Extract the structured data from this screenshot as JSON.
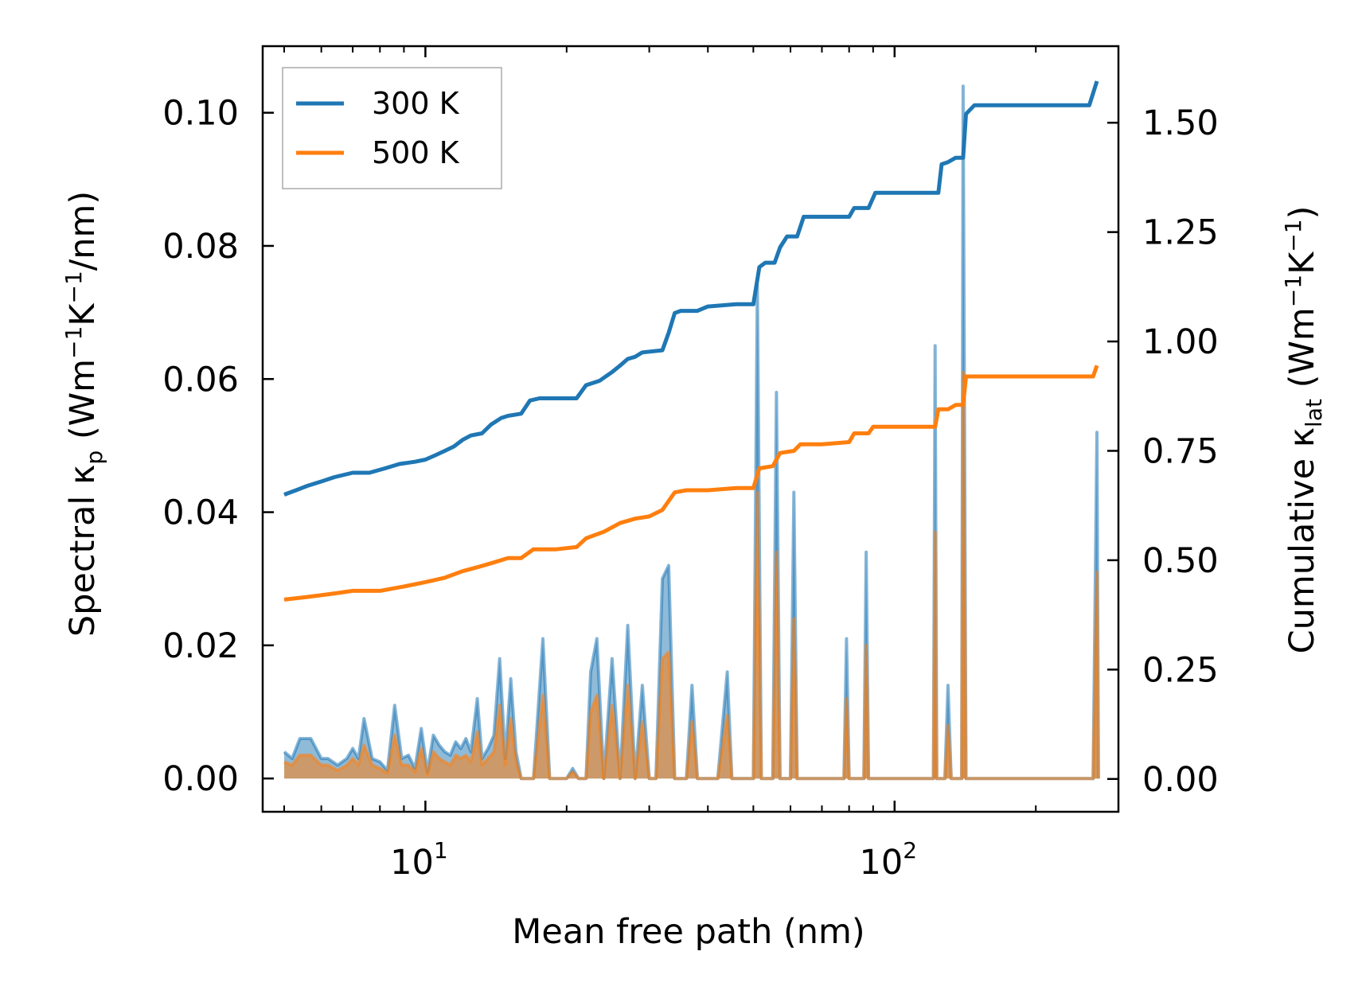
{
  "chart_data": {
    "type": "line",
    "xscale": "log",
    "xlabel": "Mean free path (nm)",
    "ylabel_left": {
      "main": "Spectral κ",
      "sub": "p",
      "unit_open": " (Wm",
      "exp1": "−1",
      "mid": "K",
      "exp2": "−1",
      "unit_close": "/nm)"
    },
    "ylabel_right": {
      "main": "Cumulative κ",
      "sub": "lat",
      "unit_open": " (Wm",
      "exp1": "−1",
      "mid": "K",
      "exp2": "−1",
      "unit_close": ")"
    },
    "xlim": [
      4.5,
      300
    ],
    "ylim_left": [
      -0.005,
      0.11
    ],
    "ylim_right": [
      -0.075,
      1.675
    ],
    "x_ticks": [
      {
        "value": 10,
        "base": "10",
        "exp": "1"
      },
      {
        "value": 100,
        "base": "10",
        "exp": "2"
      }
    ],
    "y_ticks_left": [
      {
        "value": 0.0,
        "label": "0.00"
      },
      {
        "value": 0.02,
        "label": "0.02"
      },
      {
        "value": 0.04,
        "label": "0.04"
      },
      {
        "value": 0.06,
        "label": "0.06"
      },
      {
        "value": 0.08,
        "label": "0.08"
      },
      {
        "value": 0.1,
        "label": "0.10"
      }
    ],
    "y_ticks_right": [
      {
        "value": 0.0,
        "label": "0.00"
      },
      {
        "value": 0.25,
        "label": "0.25"
      },
      {
        "value": 0.5,
        "label": "0.50"
      },
      {
        "value": 0.75,
        "label": "0.75"
      },
      {
        "value": 1.0,
        "label": "1.00"
      },
      {
        "value": 1.25,
        "label": "1.25"
      },
      {
        "value": 1.5,
        "label": "1.50"
      }
    ],
    "legend": {
      "position": "top-left",
      "entries": [
        {
          "label": "300 K",
          "color": "#1f77b4"
        },
        {
          "label": "500 K",
          "color": "#ff7f0e"
        }
      ]
    },
    "series": [
      {
        "name": "300 K",
        "color": "#1f77b4",
        "cumulative": [
          [
            5.0,
            0.65
          ],
          [
            5.3,
            0.66
          ],
          [
            5.6,
            0.67
          ],
          [
            6.0,
            0.68
          ],
          [
            6.4,
            0.69
          ],
          [
            7.0,
            0.7
          ],
          [
            7.6,
            0.7
          ],
          [
            8.2,
            0.71
          ],
          [
            8.8,
            0.72
          ],
          [
            9.5,
            0.725
          ],
          [
            10.0,
            0.73
          ],
          [
            10.5,
            0.74
          ],
          [
            11.0,
            0.75
          ],
          [
            11.5,
            0.76
          ],
          [
            12.0,
            0.775
          ],
          [
            12.5,
            0.785
          ],
          [
            13.2,
            0.79
          ],
          [
            13.8,
            0.81
          ],
          [
            14.5,
            0.825
          ],
          [
            15.0,
            0.83
          ],
          [
            16.0,
            0.835
          ],
          [
            16.7,
            0.865
          ],
          [
            17.5,
            0.87
          ],
          [
            19.0,
            0.87
          ],
          [
            21.0,
            0.87
          ],
          [
            22.0,
            0.9
          ],
          [
            23.5,
            0.91
          ],
          [
            25.0,
            0.93
          ],
          [
            26.0,
            0.945
          ],
          [
            27.0,
            0.96
          ],
          [
            28.0,
            0.965
          ],
          [
            29.0,
            0.975
          ],
          [
            32.0,
            0.98
          ],
          [
            33.0,
            1.02
          ],
          [
            34.0,
            1.065
          ],
          [
            35.0,
            1.07
          ],
          [
            38.0,
            1.07
          ],
          [
            40.0,
            1.08
          ],
          [
            46.0,
            1.085
          ],
          [
            50.0,
            1.085
          ],
          [
            51.5,
            1.17
          ],
          [
            53.0,
            1.18
          ],
          [
            55.5,
            1.18
          ],
          [
            57.0,
            1.215
          ],
          [
            59.0,
            1.24
          ],
          [
            62.0,
            1.24
          ],
          [
            64.0,
            1.285
          ],
          [
            70.0,
            1.285
          ],
          [
            80.0,
            1.285
          ],
          [
            82.0,
            1.305
          ],
          [
            88.0,
            1.305
          ],
          [
            91.0,
            1.34
          ],
          [
            100.0,
            1.34
          ],
          [
            124.0,
            1.34
          ],
          [
            126.0,
            1.405
          ],
          [
            130.0,
            1.41
          ],
          [
            135.0,
            1.42
          ],
          [
            140.0,
            1.42
          ],
          [
            142.0,
            1.52
          ],
          [
            148.0,
            1.54
          ],
          [
            200.0,
            1.54
          ],
          [
            260.0,
            1.54
          ],
          [
            270.0,
            1.595
          ]
        ],
        "spectral": [
          [
            5.0,
            0.004
          ],
          [
            5.2,
            0.003
          ],
          [
            5.4,
            0.006
          ],
          [
            5.7,
            0.006
          ],
          [
            6.0,
            0.003
          ],
          [
            6.2,
            0.003
          ],
          [
            6.5,
            0.002
          ],
          [
            6.8,
            0.003
          ],
          [
            7.0,
            0.0045
          ],
          [
            7.2,
            0.003
          ],
          [
            7.4,
            0.009
          ],
          [
            7.7,
            0.003
          ],
          [
            8.0,
            0.0025
          ],
          [
            8.3,
            0.0012
          ],
          [
            8.6,
            0.011
          ],
          [
            8.9,
            0.003
          ],
          [
            9.2,
            0.0035
          ],
          [
            9.5,
            0.0015
          ],
          [
            9.8,
            0.0075
          ],
          [
            10.1,
            0.001
          ],
          [
            10.4,
            0.0065
          ],
          [
            10.7,
            0.005
          ],
          [
            11.0,
            0.004
          ],
          [
            11.3,
            0.0035
          ],
          [
            11.6,
            0.0055
          ],
          [
            11.9,
            0.0045
          ],
          [
            12.2,
            0.006
          ],
          [
            12.5,
            0.004
          ],
          [
            12.9,
            0.012
          ],
          [
            13.2,
            0.003
          ],
          [
            13.6,
            0.0045
          ],
          [
            14.0,
            0.0065
          ],
          [
            14.4,
            0.018
          ],
          [
            14.8,
            0.003
          ],
          [
            15.2,
            0.015
          ],
          [
            15.6,
            0.004
          ],
          [
            16.0,
            0.0
          ],
          [
            17.0,
            0.0
          ],
          [
            17.8,
            0.021
          ],
          [
            18.4,
            0.0
          ],
          [
            20.0,
            0.0
          ],
          [
            20.6,
            0.0015
          ],
          [
            21.2,
            0.0
          ],
          [
            22.0,
            0.0
          ],
          [
            22.5,
            0.016
          ],
          [
            23.2,
            0.021
          ],
          [
            24.0,
            0.0
          ],
          [
            25.0,
            0.018
          ],
          [
            26.0,
            0.0
          ],
          [
            27.0,
            0.023
          ],
          [
            28.0,
            0.0
          ],
          [
            29.0,
            0.014
          ],
          [
            30.0,
            0.0
          ],
          [
            31.0,
            0.0
          ],
          [
            32.0,
            0.03
          ],
          [
            33.0,
            0.032
          ],
          [
            34.0,
            0.0
          ],
          [
            36.0,
            0.0
          ],
          [
            37.0,
            0.014
          ],
          [
            38.0,
            0.0
          ],
          [
            42.0,
            0.0
          ],
          [
            44.0,
            0.016
          ],
          [
            45.0,
            0.0
          ],
          [
            50.0,
            0.0
          ],
          [
            51.0,
            0.074
          ],
          [
            52.0,
            0.0
          ],
          [
            55.0,
            0.0
          ],
          [
            56.0,
            0.058
          ],
          [
            57.0,
            0.0
          ],
          [
            60.0,
            0.0
          ],
          [
            61.0,
            0.043
          ],
          [
            62.0,
            0.0
          ],
          [
            78.0,
            0.0
          ],
          [
            79.0,
            0.021
          ],
          [
            80.0,
            0.0
          ],
          [
            86.0,
            0.0
          ],
          [
            87.0,
            0.034
          ],
          [
            88.0,
            0.0
          ],
          [
            121.0,
            0.0
          ],
          [
            122.0,
            0.065
          ],
          [
            123.0,
            0.0
          ],
          [
            128.0,
            0.0
          ],
          [
            130.0,
            0.014
          ],
          [
            132.0,
            0.0
          ],
          [
            139.0,
            0.0
          ],
          [
            140.0,
            0.104
          ],
          [
            142.0,
            0.0
          ],
          [
            265.0,
            0.0
          ],
          [
            270.0,
            0.052
          ],
          [
            272.0,
            0.0
          ]
        ]
      },
      {
        "name": "500 K",
        "color": "#ff7f0e",
        "cumulative": [
          [
            5.0,
            0.41
          ],
          [
            5.5,
            0.415
          ],
          [
            6.0,
            0.42
          ],
          [
            6.5,
            0.425
          ],
          [
            7.0,
            0.43
          ],
          [
            8.0,
            0.43
          ],
          [
            9.0,
            0.44
          ],
          [
            10.0,
            0.45
          ],
          [
            11.0,
            0.46
          ],
          [
            12.0,
            0.475
          ],
          [
            13.0,
            0.485
          ],
          [
            14.0,
            0.495
          ],
          [
            15.0,
            0.505
          ],
          [
            16.0,
            0.505
          ],
          [
            17.0,
            0.525
          ],
          [
            19.0,
            0.525
          ],
          [
            21.0,
            0.53
          ],
          [
            22.0,
            0.55
          ],
          [
            24.0,
            0.565
          ],
          [
            26.0,
            0.585
          ],
          [
            28.0,
            0.595
          ],
          [
            30.0,
            0.6
          ],
          [
            32.0,
            0.615
          ],
          [
            34.0,
            0.655
          ],
          [
            36.0,
            0.66
          ],
          [
            40.0,
            0.66
          ],
          [
            46.0,
            0.665
          ],
          [
            50.0,
            0.665
          ],
          [
            51.5,
            0.71
          ],
          [
            55.0,
            0.715
          ],
          [
            57.0,
            0.745
          ],
          [
            61.0,
            0.75
          ],
          [
            63.0,
            0.765
          ],
          [
            70.0,
            0.765
          ],
          [
            80.0,
            0.77
          ],
          [
            82.0,
            0.79
          ],
          [
            88.0,
            0.79
          ],
          [
            90.0,
            0.805
          ],
          [
            110.0,
            0.805
          ],
          [
            122.0,
            0.805
          ],
          [
            124.0,
            0.845
          ],
          [
            130.0,
            0.845
          ],
          [
            135.0,
            0.855
          ],
          [
            140.0,
            0.855
          ],
          [
            142.0,
            0.92
          ],
          [
            150.0,
            0.92
          ],
          [
            200.0,
            0.92
          ],
          [
            265.0,
            0.92
          ],
          [
            270.0,
            0.945
          ]
        ],
        "spectral": [
          [
            5.0,
            0.0025
          ],
          [
            5.2,
            0.002
          ],
          [
            5.4,
            0.0035
          ],
          [
            5.7,
            0.0035
          ],
          [
            6.0,
            0.002
          ],
          [
            6.2,
            0.002
          ],
          [
            6.5,
            0.0012
          ],
          [
            6.8,
            0.002
          ],
          [
            7.0,
            0.003
          ],
          [
            7.2,
            0.002
          ],
          [
            7.4,
            0.005
          ],
          [
            7.7,
            0.002
          ],
          [
            8.0,
            0.0015
          ],
          [
            8.3,
            0.0008
          ],
          [
            8.6,
            0.0065
          ],
          [
            8.9,
            0.002
          ],
          [
            9.2,
            0.002
          ],
          [
            9.5,
            0.001
          ],
          [
            9.8,
            0.0045
          ],
          [
            10.1,
            0.0006
          ],
          [
            10.4,
            0.004
          ],
          [
            10.7,
            0.003
          ],
          [
            11.0,
            0.0025
          ],
          [
            11.3,
            0.002
          ],
          [
            11.6,
            0.0035
          ],
          [
            11.9,
            0.003
          ],
          [
            12.2,
            0.0035
          ],
          [
            12.5,
            0.0025
          ],
          [
            12.9,
            0.007
          ],
          [
            13.2,
            0.002
          ],
          [
            13.6,
            0.003
          ],
          [
            14.0,
            0.004
          ],
          [
            14.4,
            0.011
          ],
          [
            14.8,
            0.002
          ],
          [
            15.2,
            0.009
          ],
          [
            15.6,
            0.0025
          ],
          [
            16.0,
            0.0
          ],
          [
            17.0,
            0.0
          ],
          [
            17.8,
            0.0125
          ],
          [
            18.4,
            0.0
          ],
          [
            20.0,
            0.0
          ],
          [
            20.6,
            0.001
          ],
          [
            21.2,
            0.0
          ],
          [
            22.0,
            0.0
          ],
          [
            22.5,
            0.01
          ],
          [
            23.2,
            0.0125
          ],
          [
            24.0,
            0.0
          ],
          [
            25.0,
            0.011
          ],
          [
            26.0,
            0.0
          ],
          [
            27.0,
            0.014
          ],
          [
            28.0,
            0.0
          ],
          [
            29.0,
            0.0085
          ],
          [
            30.0,
            0.0
          ],
          [
            31.0,
            0.0
          ],
          [
            32.0,
            0.018
          ],
          [
            33.0,
            0.019
          ],
          [
            34.0,
            0.0
          ],
          [
            36.0,
            0.0
          ],
          [
            37.0,
            0.0085
          ],
          [
            38.0,
            0.0
          ],
          [
            42.0,
            0.0
          ],
          [
            44.0,
            0.0095
          ],
          [
            45.0,
            0.0
          ],
          [
            50.0,
            0.0
          ],
          [
            51.0,
            0.043
          ],
          [
            52.0,
            0.0
          ],
          [
            55.0,
            0.0
          ],
          [
            56.0,
            0.034
          ],
          [
            57.0,
            0.0
          ],
          [
            60.0,
            0.0
          ],
          [
            61.0,
            0.024
          ],
          [
            62.0,
            0.0
          ],
          [
            78.0,
            0.0
          ],
          [
            79.0,
            0.012
          ],
          [
            80.0,
            0.0
          ],
          [
            86.0,
            0.0
          ],
          [
            87.0,
            0.02
          ],
          [
            88.0,
            0.0
          ],
          [
            121.0,
            0.0
          ],
          [
            122.0,
            0.037
          ],
          [
            123.0,
            0.0
          ],
          [
            128.0,
            0.0
          ],
          [
            130.0,
            0.008
          ],
          [
            132.0,
            0.0
          ],
          [
            139.0,
            0.0
          ],
          [
            140.0,
            0.061
          ],
          [
            142.0,
            0.0
          ],
          [
            265.0,
            0.0
          ],
          [
            270.0,
            0.031
          ],
          [
            272.0,
            0.0
          ]
        ]
      }
    ]
  }
}
